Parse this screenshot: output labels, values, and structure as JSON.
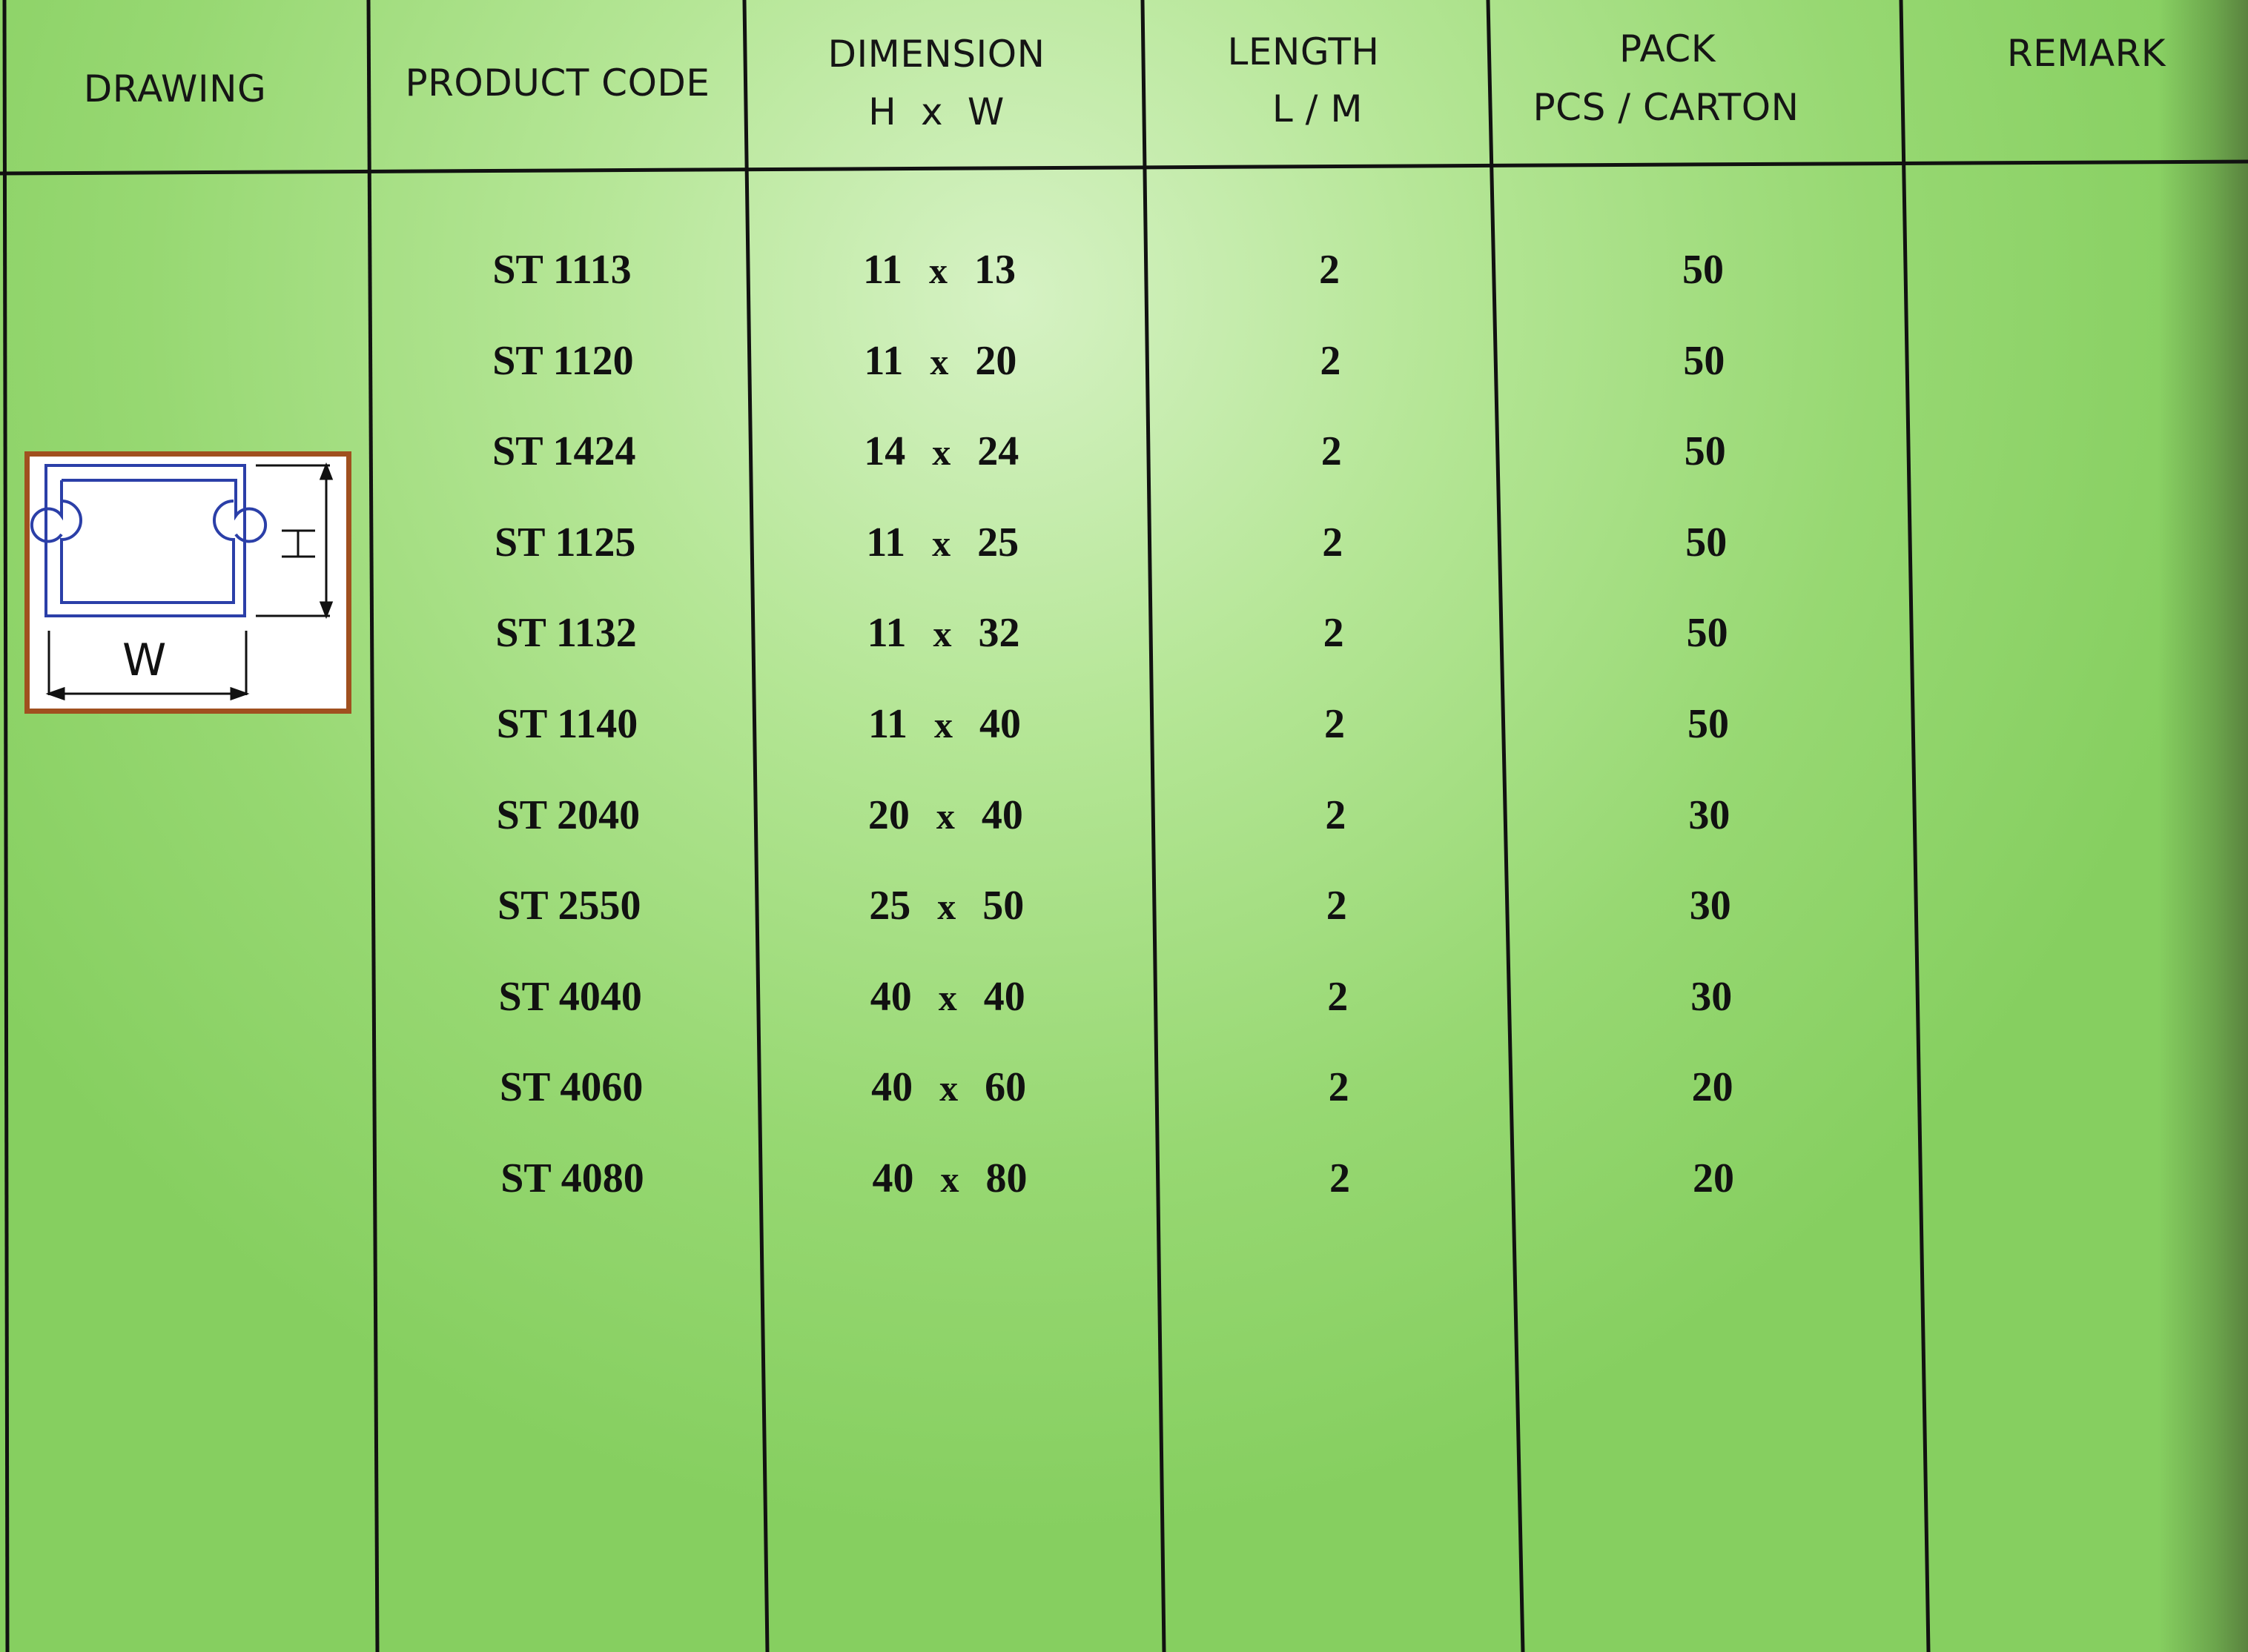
{
  "headers": {
    "drawing": "DRAWING",
    "product_code": "PRODUCT CODE",
    "dimension": "DIMENSION",
    "dimension_sub": "H  x  W",
    "length": "LENGTH",
    "length_sub": "L / M",
    "pack": "PACK",
    "pack_sub": "PCS / CARTON",
    "remark": "REMARK"
  },
  "drawing": {
    "width_label": "W",
    "height_label": "H",
    "icon": "trunking-cross-section-icon",
    "frame_color": "#a0501f",
    "line_color": "#2b3fa8"
  },
  "rows": [
    {
      "code": "ST 1113",
      "h": "11",
      "w": "13",
      "length": "2",
      "pack": "50"
    },
    {
      "code": "ST 1120",
      "h": "11",
      "w": "20",
      "length": "2",
      "pack": "50"
    },
    {
      "code": "ST 1424",
      "h": "14",
      "w": "24",
      "length": "2",
      "pack": "50"
    },
    {
      "code": "ST 1125",
      "h": "11",
      "w": "25",
      "length": "2",
      "pack": "50"
    },
    {
      "code": "ST 1132",
      "h": "11",
      "w": "32",
      "length": "2",
      "pack": "50"
    },
    {
      "code": "ST 1140",
      "h": "11",
      "w": "40",
      "length": "2",
      "pack": "50"
    },
    {
      "code": "ST 2040",
      "h": "20",
      "w": "40",
      "length": "2",
      "pack": "30"
    },
    {
      "code": "ST 2550",
      "h": "25",
      "w": "50",
      "length": "2",
      "pack": "30"
    },
    {
      "code": "ST 4040",
      "h": "40",
      "w": "40",
      "length": "2",
      "pack": "30"
    },
    {
      "code": "ST 4060",
      "h": "40",
      "w": "60",
      "length": "2",
      "pack": "20"
    },
    {
      "code": "ST 4080",
      "h": "40",
      "w": "80",
      "length": "2",
      "pack": "20"
    }
  ],
  "dim_separator": "x",
  "colors": {
    "background": "#a8e085",
    "rules": "#111111"
  }
}
